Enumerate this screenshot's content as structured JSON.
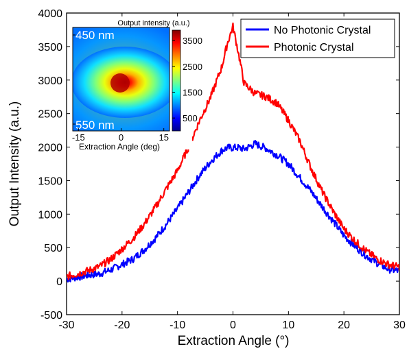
{
  "chart_data": {
    "type": "line",
    "xlabel": "Extraction Angle (°)",
    "ylabel": "Output Intensity (a.u.)",
    "xlim": [
      -30,
      30
    ],
    "ylim": [
      -500,
      4000
    ],
    "xticks": [
      "-30",
      "-20",
      "-10",
      "0",
      "10",
      "20",
      "30"
    ],
    "yticks": [
      "-500",
      "0",
      "500",
      "1000",
      "1500",
      "2000",
      "2500",
      "3000",
      "3500",
      "4000"
    ],
    "grid": false,
    "legend_position": "top-right",
    "x": [
      -30,
      -28,
      -26,
      -24,
      -22,
      -20,
      -18,
      -16,
      -14,
      -12,
      -10,
      -8,
      -6,
      -4,
      -2,
      -1,
      0,
      1,
      2,
      4,
      6,
      8,
      10,
      12,
      14,
      16,
      18,
      20,
      22,
      24,
      26,
      28,
      30
    ],
    "series": [
      {
        "name": "No Photonic Crystal",
        "color": "#0000ff",
        "values": [
          30,
          60,
          90,
          110,
          170,
          250,
          330,
          470,
          640,
          850,
          1080,
          1330,
          1580,
          1790,
          1950,
          1990,
          1990,
          1990,
          1970,
          2050,
          1980,
          1880,
          1750,
          1550,
          1350,
          1120,
          900,
          680,
          520,
          380,
          270,
          180,
          150
        ]
      },
      {
        "name": "Photonic Crystal",
        "color": "#ff0000",
        "values": [
          70,
          110,
          160,
          220,
          330,
          480,
          640,
          850,
          1100,
          1380,
          1650,
          2000,
          2400,
          2750,
          3200,
          3550,
          3800,
          3400,
          2950,
          2800,
          2750,
          2650,
          2400,
          2100,
          1700,
          1350,
          1050,
          780,
          600,
          450,
          330,
          250,
          210
        ]
      }
    ],
    "inset": {
      "type": "heatmap",
      "colorbar_title": "Output intensity (a.u.)",
      "colorbar_ticks": [
        "3500",
        "2500",
        "1500",
        "500"
      ],
      "colorbar_range": [
        0,
        3900
      ],
      "xticks": [
        "-15",
        "0",
        "15"
      ],
      "xlabel": "Extraction Angle (deg)",
      "top_label": "450 nm",
      "bottom_label": "550 nm",
      "colormap": "jet",
      "peak": {
        "x": 0,
        "value": 3800
      }
    }
  }
}
